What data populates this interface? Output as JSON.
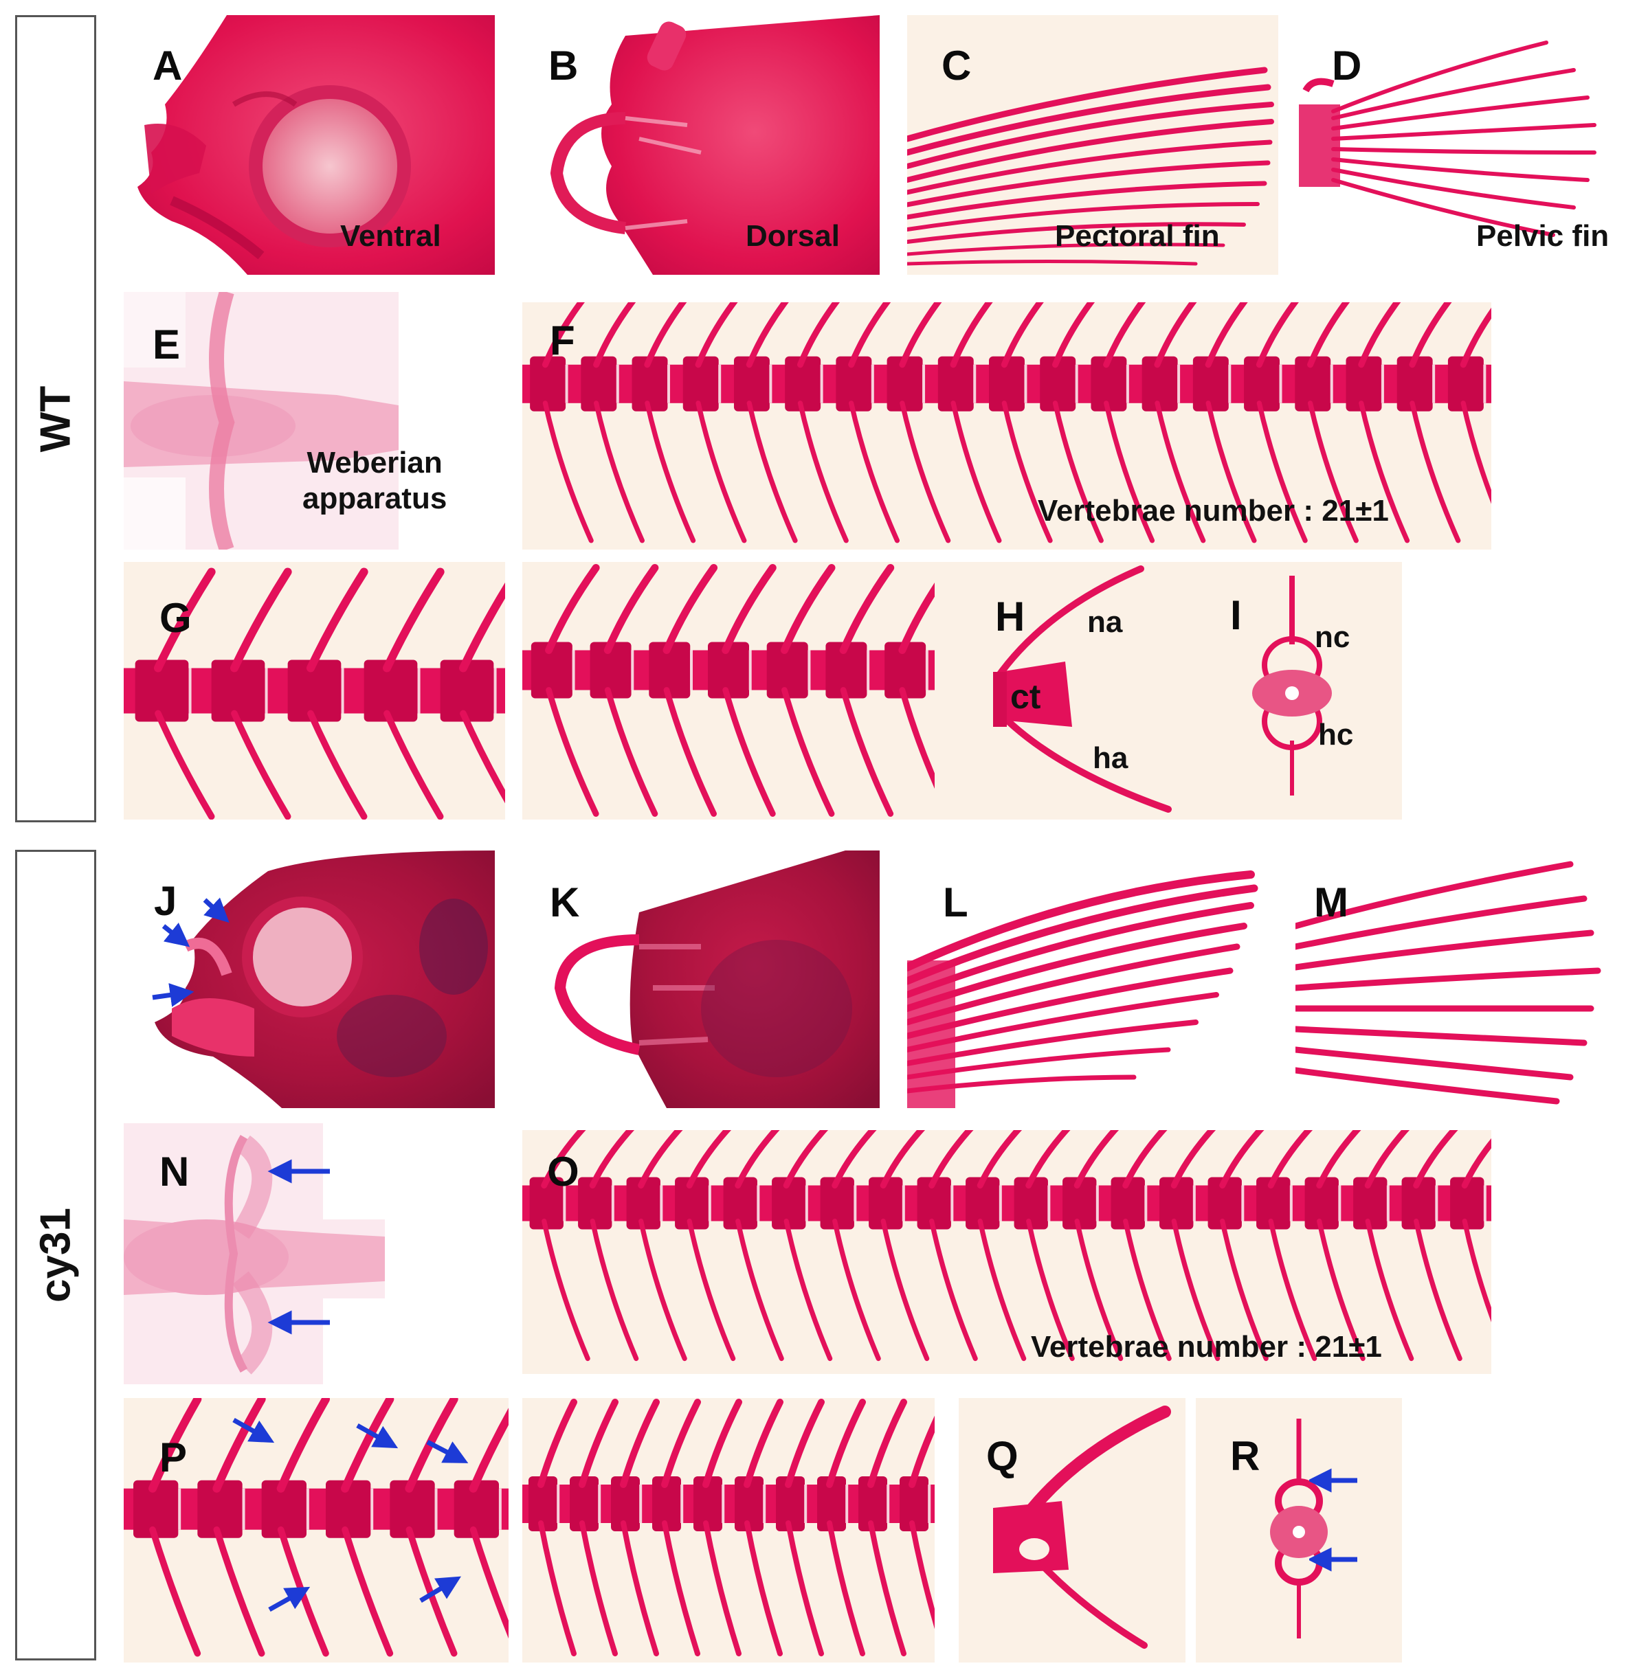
{
  "groups": {
    "wt": "WT",
    "mutant": "cy31"
  },
  "panels": {
    "A": {
      "letter": "A",
      "caption": "Ventral"
    },
    "B": {
      "letter": "B",
      "caption": "Dorsal"
    },
    "C": {
      "letter": "C",
      "caption": "Pectoral fin"
    },
    "D": {
      "letter": "D",
      "caption": "Pelvic fin"
    },
    "E": {
      "letter": "E",
      "caption_line1": "Weberian",
      "caption_line2": "apparatus"
    },
    "F": {
      "letter": "F",
      "caption": "Vertebrae number : 21±1"
    },
    "G": {
      "letter": "G"
    },
    "H": {
      "letter": "H",
      "label_na": "na",
      "label_ct": "ct",
      "label_ha": "ha"
    },
    "I": {
      "letter": "I",
      "label_nc": "nc",
      "label_hc": "hc"
    },
    "J": {
      "letter": "J"
    },
    "K": {
      "letter": "K"
    },
    "L": {
      "letter": "L"
    },
    "M": {
      "letter": "M"
    },
    "N": {
      "letter": "N"
    },
    "O": {
      "letter": "O",
      "caption": "Vertebrae number : 21±1"
    },
    "P": {
      "letter": "P"
    },
    "Q": {
      "letter": "Q"
    },
    "R": {
      "letter": "R"
    }
  },
  "colors": {
    "bone_stain": "#e3105a",
    "bone_dark": "#c8074a",
    "tissue_light": "#f3b7cc",
    "background_cream": "#fbf1e6",
    "arrow_blue": "#1d3bd6"
  }
}
